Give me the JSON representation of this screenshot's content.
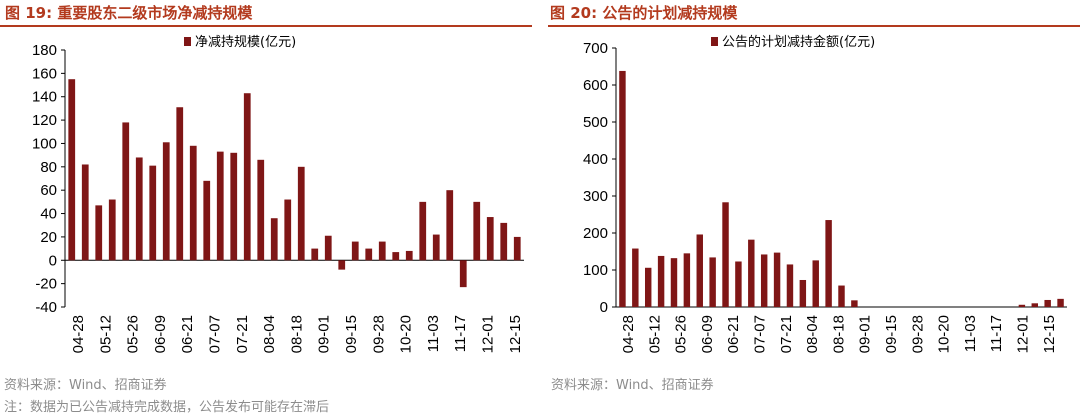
{
  "charts_text": {
    "left_title": "图 19:  重要股东二级市场净减持规模",
    "right_title": "图 20:  公告的计划减持规模",
    "left_source": "资料来源：Wind、招商证券",
    "right_source": "资料来源：Wind、招商证券",
    "note": "注：数据为已公告减持完成数据，公告发布可能存在滞后"
  },
  "colors": {
    "accent": "#b33a1e",
    "bar": "#7f1616"
  },
  "chart_data": [
    {
      "type": "bar",
      "title": "",
      "legend": "净减持规模(亿元)",
      "legend_position": "top-center",
      "ylim": [
        -40,
        180
      ],
      "yticks": [
        -40,
        -20,
        0,
        20,
        40,
        60,
        80,
        100,
        120,
        140,
        160,
        180
      ],
      "tick_labels": [
        "04-28",
        "05-12",
        "05-26",
        "06-09",
        "06-21",
        "07-07",
        "07-21",
        "08-04",
        "08-18",
        "09-01",
        "09-15",
        "09-28",
        "10-20",
        "11-03",
        "11-17",
        "12-01",
        "12-15"
      ],
      "values": [
        155,
        82,
        47,
        52,
        118,
        88,
        81,
        101,
        131,
        98,
        68,
        93,
        92,
        143,
        86,
        36,
        52,
        80,
        10,
        21,
        -8,
        16,
        10,
        16,
        7,
        8,
        50,
        22,
        60,
        -23,
        50,
        37,
        32,
        20
      ]
    },
    {
      "type": "bar",
      "title": "",
      "legend": "公告的计划减持金额(亿元)",
      "legend_position": "top-center",
      "ylim": [
        0,
        700
      ],
      "yticks": [
        0,
        100,
        200,
        300,
        400,
        500,
        600,
        700
      ],
      "tick_labels": [
        "04-28",
        "05-12",
        "05-26",
        "06-09",
        "06-21",
        "07-07",
        "07-21",
        "08-04",
        "08-18",
        "09-01",
        "09-15",
        "09-28",
        "10-20",
        "11-03",
        "11-17",
        "12-01",
        "12-15"
      ],
      "values": [
        638,
        158,
        106,
        138,
        132,
        145,
        196,
        134,
        283,
        123,
        182,
        142,
        147,
        115,
        73,
        126,
        235,
        58,
        18,
        0,
        0,
        0,
        0,
        0,
        0,
        0,
        0,
        0,
        0,
        0,
        0,
        6,
        10,
        19,
        22
      ]
    }
  ]
}
